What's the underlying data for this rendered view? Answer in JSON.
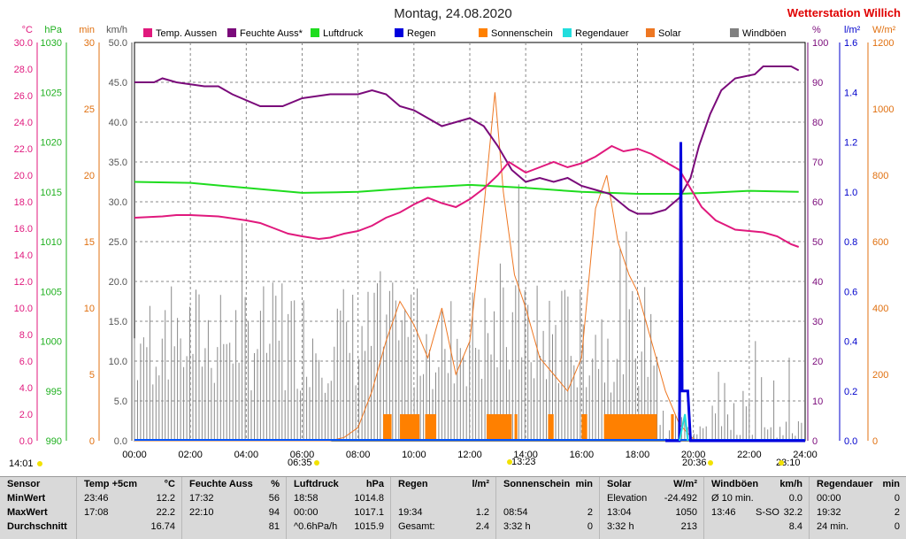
{
  "header": {
    "title": "Montag, 24.08.2020",
    "station": "Wetterstation Willich"
  },
  "legend": [
    {
      "name": "Temp. Aussen",
      "color": "#e0197d"
    },
    {
      "name": "Feuchte Auss*",
      "color": "#7a0a7a"
    },
    {
      "name": "Luftdruck",
      "color": "#1fdc1f"
    },
    {
      "name": "Regen",
      "color": "#0000dd"
    },
    {
      "name": "Sonnenschein",
      "color": "#ff8000"
    },
    {
      "name": "Regendauer",
      "color": "#22dddd"
    },
    {
      "name": "Solar",
      "color": "#ee7722"
    },
    {
      "name": "Windböen",
      "color": "#808080"
    }
  ],
  "axes": {
    "temp": {
      "unit": "°C",
      "color": "#e0197d",
      "ticks": [
        "30.0",
        "28.0",
        "26.0",
        "24.0",
        "22.0",
        "20.0",
        "18.0",
        "16.0",
        "14.0",
        "12.0",
        "10.0",
        "8.0",
        "6.0",
        "4.0",
        "2.0",
        "0.0"
      ]
    },
    "pressure": {
      "unit": "hPa",
      "color": "#1fb01f",
      "ticks": [
        "1030",
        "1025",
        "1020",
        "1015",
        "1010",
        "1005",
        "1000",
        "995",
        "990"
      ]
    },
    "minutes": {
      "unit": "min",
      "color": "#e07010",
      "ticks": [
        "30",
        "25",
        "20",
        "15",
        "10",
        "5",
        "0"
      ]
    },
    "wind": {
      "unit": "km/h",
      "color": "#555555",
      "ticks": [
        "50.0",
        "45.0",
        "40.0",
        "35.0",
        "30.0",
        "25.0",
        "20.0",
        "15.0",
        "10.0",
        "5.0",
        "0.0"
      ]
    },
    "humidity": {
      "unit": "%",
      "color": "#7a0a7a",
      "ticks": [
        "100",
        "90",
        "80",
        "70",
        "60",
        "50",
        "40",
        "30",
        "20",
        "10",
        "0"
      ]
    },
    "rain": {
      "unit": "l/m²",
      "color": "#0000cc",
      "ticks": [
        "1.6",
        "1.4",
        "1.2",
        "1.0",
        "0.8",
        "0.6",
        "0.4",
        "0.2",
        "0.0"
      ]
    },
    "solar": {
      "unit": "W/m²",
      "color": "#e07010",
      "ticks": [
        "1200",
        "1000",
        "800",
        "600",
        "400",
        "200",
        "0"
      ]
    },
    "x_ticks": [
      "00:00",
      "02:00",
      "04:00",
      "06:00",
      "08:00",
      "10:00",
      "12:00",
      "14:00",
      "16:00",
      "18:00",
      "20:00",
      "22:00",
      "24:00"
    ]
  },
  "markers": [
    {
      "text": "14:01"
    },
    {
      "text": "06:35"
    },
    {
      "text": "13:23"
    },
    {
      "text": "20:36"
    },
    {
      "text": "23:10"
    }
  ],
  "chart_data": {
    "type": "line",
    "x_range_hours": [
      0,
      24
    ],
    "series": [
      {
        "name": "Temp. Aussen",
        "axis": "temp",
        "points": [
          [
            0,
            16.8
          ],
          [
            1,
            16.9
          ],
          [
            1.5,
            17.0
          ],
          [
            2,
            17.0
          ],
          [
            3,
            16.9
          ],
          [
            4,
            16.6
          ],
          [
            4.5,
            16.4
          ],
          [
            5,
            16.0
          ],
          [
            5.5,
            15.6
          ],
          [
            6,
            15.4
          ],
          [
            6.6,
            15.2
          ],
          [
            7,
            15.3
          ],
          [
            7.5,
            15.6
          ],
          [
            8,
            15.8
          ],
          [
            8.5,
            16.2
          ],
          [
            9,
            16.8
          ],
          [
            9.5,
            17.2
          ],
          [
            10,
            17.8
          ],
          [
            10.5,
            18.3
          ],
          [
            11,
            17.9
          ],
          [
            11.5,
            17.6
          ],
          [
            12,
            18.2
          ],
          [
            12.5,
            19.0
          ],
          [
            13,
            20.0
          ],
          [
            13.4,
            21.0
          ],
          [
            13.7,
            20.6
          ],
          [
            14,
            20.2
          ],
          [
            14.5,
            20.6
          ],
          [
            15,
            21.0
          ],
          [
            15.5,
            20.6
          ],
          [
            16,
            20.9
          ],
          [
            16.5,
            21.4
          ],
          [
            17.08,
            22.2
          ],
          [
            17.5,
            21.8
          ],
          [
            18,
            22.0
          ],
          [
            18.5,
            21.6
          ],
          [
            19,
            21.0
          ],
          [
            19.5,
            20.4
          ],
          [
            19.9,
            19.0
          ],
          [
            20.3,
            17.6
          ],
          [
            20.8,
            16.6
          ],
          [
            21.5,
            15.9
          ],
          [
            22,
            15.8
          ],
          [
            22.5,
            15.7
          ],
          [
            23,
            15.4
          ],
          [
            23.5,
            14.8
          ],
          [
            23.77,
            14.6
          ]
        ]
      },
      {
        "name": "Feuchte Auss*",
        "axis": "humidity",
        "points": [
          [
            0,
            90
          ],
          [
            0.7,
            90
          ],
          [
            1,
            91
          ],
          [
            1.5,
            90
          ],
          [
            2.5,
            89
          ],
          [
            3,
            89
          ],
          [
            3.5,
            87
          ],
          [
            4.5,
            84
          ],
          [
            5.3,
            84
          ],
          [
            6,
            86
          ],
          [
            7,
            87
          ],
          [
            8,
            87
          ],
          [
            8.5,
            88
          ],
          [
            9,
            87
          ],
          [
            9.5,
            84
          ],
          [
            10,
            83
          ],
          [
            11,
            79
          ],
          [
            12,
            81
          ],
          [
            12.5,
            79
          ],
          [
            13,
            74
          ],
          [
            13.5,
            68
          ],
          [
            14,
            65
          ],
          [
            14.5,
            66
          ],
          [
            15,
            65
          ],
          [
            15.5,
            66
          ],
          [
            16,
            64
          ],
          [
            16.5,
            63
          ],
          [
            17,
            62
          ],
          [
            17.7,
            58
          ],
          [
            18,
            57
          ],
          [
            18.5,
            57
          ],
          [
            19,
            58
          ],
          [
            19.5,
            61
          ],
          [
            19.9,
            66
          ],
          [
            20.2,
            74
          ],
          [
            20.6,
            82
          ],
          [
            21,
            88
          ],
          [
            21.5,
            91
          ],
          [
            22.2,
            92
          ],
          [
            22.5,
            94
          ],
          [
            23,
            94
          ],
          [
            23.5,
            94
          ],
          [
            23.77,
            93
          ]
        ]
      },
      {
        "name": "Luftdruck",
        "axis": "pressure",
        "points": [
          [
            0,
            1016.0
          ],
          [
            2,
            1015.9
          ],
          [
            4,
            1015.4
          ],
          [
            6,
            1014.9
          ],
          [
            8,
            1015.0
          ],
          [
            10,
            1015.4
          ],
          [
            12,
            1015.7
          ],
          [
            14,
            1015.4
          ],
          [
            16,
            1015.0
          ],
          [
            18,
            1014.8
          ],
          [
            19.5,
            1014.8
          ],
          [
            20.5,
            1014.9
          ],
          [
            22,
            1015.1
          ],
          [
            23.77,
            1015.0
          ]
        ]
      },
      {
        "name": "Regen",
        "axis": "rain",
        "points": [
          [
            19,
            0
          ],
          [
            19.5,
            0
          ],
          [
            19.55,
            1.2
          ],
          [
            19.6,
            0.2
          ],
          [
            19.8,
            0.2
          ],
          [
            19.9,
            0
          ],
          [
            24,
            0
          ]
        ]
      },
      {
        "name": "Solar",
        "axis": "solar",
        "points": [
          [
            0,
            0
          ],
          [
            7,
            0
          ],
          [
            7.5,
            10
          ],
          [
            8,
            40
          ],
          [
            8.5,
            150
          ],
          [
            9,
            300
          ],
          [
            9.5,
            420
          ],
          [
            10,
            350
          ],
          [
            10.5,
            250
          ],
          [
            11,
            400
          ],
          [
            11.5,
            200
          ],
          [
            12,
            300
          ],
          [
            12.5,
            700
          ],
          [
            12.9,
            1050
          ],
          [
            13.2,
            750
          ],
          [
            13.6,
            500
          ],
          [
            14,
            400
          ],
          [
            14.5,
            250
          ],
          [
            15,
            200
          ],
          [
            15.5,
            150
          ],
          [
            16,
            250
          ],
          [
            16.5,
            700
          ],
          [
            16.9,
            800
          ],
          [
            17.3,
            600
          ],
          [
            17.7,
            500
          ],
          [
            18,
            450
          ],
          [
            18.5,
            300
          ],
          [
            19,
            150
          ],
          [
            19.5,
            50
          ],
          [
            20,
            5
          ],
          [
            20.6,
            0
          ],
          [
            24,
            0
          ]
        ]
      },
      {
        "name": "Sonnenschein",
        "axis": "minutes",
        "blocks": [
          [
            8.9,
            9.2
          ],
          [
            9.5,
            10.2
          ],
          [
            10.4,
            10.8
          ],
          [
            12.6,
            13.5
          ],
          [
            13.6,
            13.7
          ],
          [
            14.8,
            15.0
          ],
          [
            16.0,
            16.2
          ],
          [
            16.8,
            18.7
          ],
          [
            19.2,
            19.3
          ]
        ]
      },
      {
        "name": "Windböen",
        "axis": "wind",
        "max": 32.2,
        "avg": 8.4
      },
      {
        "name": "Regendauer",
        "axis": "minutes",
        "points": [
          [
            19.5,
            0
          ],
          [
            19.7,
            2
          ],
          [
            19.8,
            0
          ]
        ]
      }
    ]
  },
  "stats_table": {
    "columns": [
      {
        "title": "Sensor",
        "unit": "",
        "rows": [
          [
            "MinWert",
            "",
            ""
          ],
          [
            "MaxWert",
            "",
            ""
          ],
          [
            "Durchschnitt",
            "",
            ""
          ]
        ]
      },
      {
        "title": "Temp +5cm",
        "unit": "°C",
        "rows": [
          [
            "23:46",
            "",
            "12.2"
          ],
          [
            "17:08",
            "",
            "22.2"
          ],
          [
            "",
            "",
            "16.74"
          ]
        ]
      },
      {
        "title": "Feuchte Auss",
        "unit": "%",
        "rows": [
          [
            "17:32",
            "",
            "56"
          ],
          [
            "22:10",
            "",
            "94"
          ],
          [
            "",
            "",
            "81"
          ]
        ]
      },
      {
        "title": "Luftdruck",
        "unit": "hPa",
        "rows": [
          [
            "18:58",
            "",
            "1014.8"
          ],
          [
            "00:00",
            "",
            "1017.1"
          ],
          [
            "^0.6hPa/h",
            "",
            "1015.9"
          ]
        ]
      },
      {
        "title": "Regen",
        "unit": "l/m²",
        "rows": [
          [
            "",
            "",
            ""
          ],
          [
            "19:34",
            "",
            "1.2"
          ],
          [
            "Gesamt:",
            "",
            "2.4"
          ]
        ]
      },
      {
        "title": "Sonnenschein",
        "unit": "min",
        "rows": [
          [
            "",
            "",
            ""
          ],
          [
            "08:54",
            "",
            "2"
          ],
          [
            "3:32 h",
            "",
            "0"
          ]
        ]
      },
      {
        "title": "Solar",
        "unit": "W/m²",
        "rows": [
          [
            "Elevation",
            "",
            "-24.492"
          ],
          [
            "13:04",
            "",
            "1050"
          ],
          [
            "3:32 h",
            "",
            "213"
          ]
        ]
      },
      {
        "title": "Windböen",
        "unit": "km/h",
        "rows": [
          [
            "Ø 10 min.",
            "",
            "0.0"
          ],
          [
            "13:46",
            "S-SO",
            "32.2"
          ],
          [
            "",
            "",
            "8.4"
          ]
        ]
      },
      {
        "title": "Regendauer",
        "unit": "min",
        "rows": [
          [
            "00:00",
            "",
            "0"
          ],
          [
            "19:32",
            "",
            "2"
          ],
          [
            "24 min.",
            "",
            "0"
          ]
        ]
      }
    ]
  }
}
